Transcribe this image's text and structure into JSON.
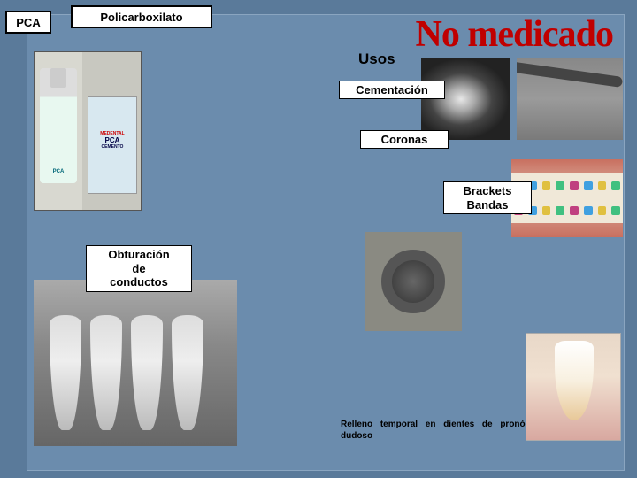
{
  "header": {
    "pca": "PCA",
    "policarboxilato": "Policarboxilato",
    "no_medicado": "No medicado"
  },
  "section_title": "Usos",
  "labels": {
    "cementacion": "Cementación",
    "coronas": "Coronas",
    "brackets_line1": "Brackets",
    "brackets_line2": "Bandas",
    "obturacion_line1": "Obturación",
    "obturacion_line2": "de",
    "obturacion_line3": "conductos"
  },
  "products": {
    "bottle_label": "PCA",
    "box_brand": "MEDENTAL",
    "box_label": "PCA",
    "box_sub": "CEMENTO"
  },
  "bracket_colors": [
    "#c04080",
    "#40a0e0",
    "#e0c040",
    "#40c080",
    "#c04080",
    "#40a0e0",
    "#e0c040",
    "#40c080"
  ],
  "footer": "Relleno temporal en dientes de pronóstico dudoso",
  "colors": {
    "slide_bg": "#5a7a9a",
    "panel_bg": "#6b8cad",
    "title_red": "#c00000"
  }
}
